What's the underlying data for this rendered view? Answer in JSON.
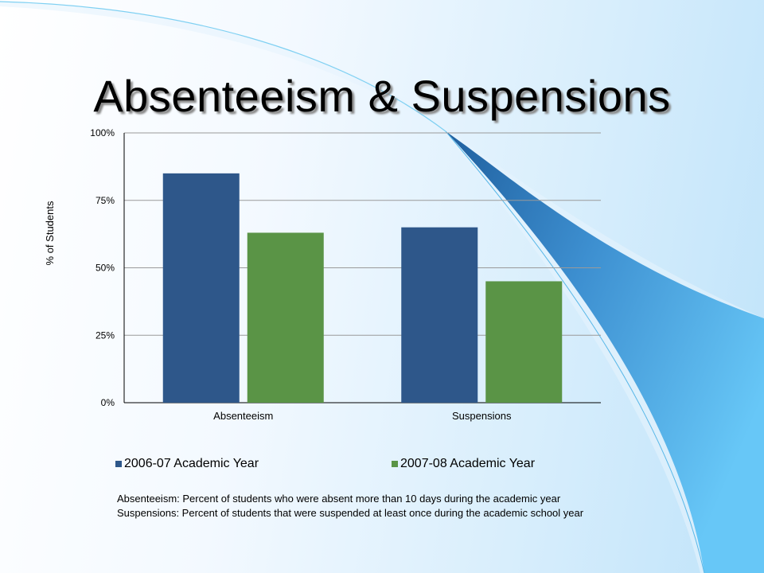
{
  "slide": {
    "title": "Absenteeism & Suspensions",
    "notes": [
      "Absenteeism: Percent of students who were absent more than 10 days during the academic year",
      "Suspensions:  Percent of students that were suspended at least once during the academic school year"
    ]
  },
  "chart_data": {
    "type": "bar",
    "title": "",
    "xlabel": "",
    "ylabel": "% of Students",
    "ylim": [
      0,
      100
    ],
    "yticks": [
      0,
      25,
      50,
      75,
      100
    ],
    "ytick_labels": [
      "0%",
      "25%",
      "50%",
      "75%",
      "100%"
    ],
    "categories": [
      "Absenteeism",
      "Suspensions"
    ],
    "series": [
      {
        "name": "2006-07 Academic Year",
        "values": [
          85,
          65
        ],
        "color": "#2e578a"
      },
      {
        "name": "2007-08 Academic Year",
        "values": [
          63,
          45
        ],
        "color": "#5a9446"
      }
    ],
    "grid": true,
    "legend": "bottom"
  },
  "colors": {
    "swoosh_dark": "#2a6fae",
    "swoosh_light": "#6cc8f8"
  }
}
